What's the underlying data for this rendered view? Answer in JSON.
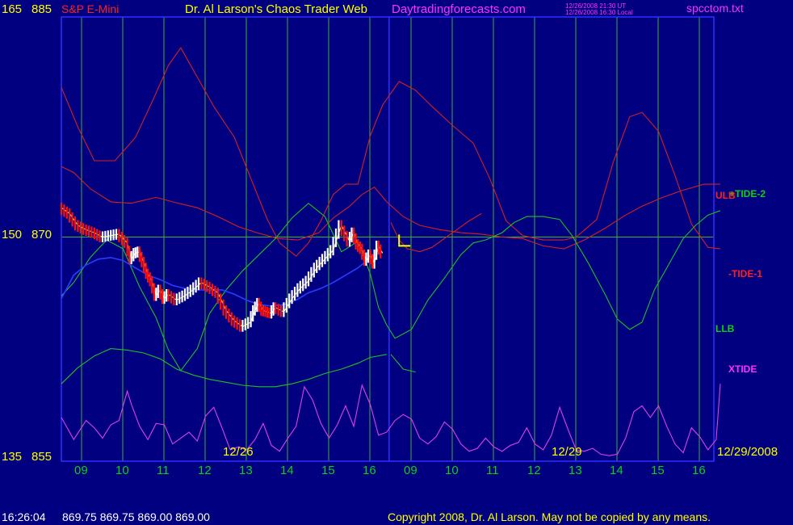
{
  "header": {
    "left_scale_top": "165",
    "left_price_top": "885",
    "instrument": "S&P E-Mini",
    "title": "Dr. Al Larson's Chaos Trader Web",
    "site": "Daytradingforecasts.com",
    "time_ut": "12/26/2008 21:30 UT",
    "time_local": "12/26/2008 16:30 Local",
    "file": "spcctom.txt"
  },
  "footer": {
    "quote_time": "16:26:04",
    "quote_values": "869.75 869.75 869.00 869.00",
    "copyright": "Copyright 2008, Dr. Al Larson. May not be copied by any means."
  },
  "colors": {
    "background": "#000080",
    "frame": "#3030ff",
    "grid": "#3cb03c",
    "ulb": "#d42020",
    "llb": "#20c020",
    "tide": "#e040e0",
    "price_up": "#ffffff",
    "price_down": "#ff1010",
    "avg_yellow": "#ffff40",
    "avg_blue": "#2a3cff",
    "label_yellow": "#ffff00",
    "label_green": "#10d010",
    "label_red": "#ff2020",
    "label_magenta": "#ff30ff"
  },
  "chart_data": {
    "type": "line",
    "y_axis_left": {
      "scale_labels": [
        "165",
        "150",
        "135"
      ],
      "price_labels": [
        "885",
        "870",
        "855"
      ],
      "ylim": [
        855,
        885
      ]
    },
    "hours": [
      "09",
      "10",
      "11",
      "12",
      "13",
      "14",
      "15",
      "16",
      "09",
      "10",
      "11",
      "12",
      "13",
      "14",
      "15",
      "16"
    ],
    "date_labels": [
      "12/26",
      "12/29",
      "12/29/2008"
    ],
    "right_labels": {
      "plus_tide_2": "+TIDE-2",
      "ulb": "ULB",
      "minus_tide_1": "-TIDE-1",
      "llb": "LLB",
      "xtide": "XTIDE"
    },
    "reference_price": 870,
    "marker": "L",
    "series": [
      {
        "name": "ULB",
        "x": [
          0,
          0.3,
          0.7,
          1.2,
          1.7,
          2.3,
          2.7,
          3.3,
          3.8,
          4.3,
          4.75,
          5.25,
          5.75,
          6.25,
          6.6,
          7.0,
          7.3,
          7.6,
          7.9,
          8.3,
          8.7,
          9.2,
          9.7,
          10.2,
          10.7,
          11.2,
          11.7,
          12.2,
          12.7,
          13.2,
          13.7,
          14.1,
          14.6,
          15.1,
          15.6,
          16.0
        ],
        "y": [
          874.8,
          874.4,
          873.3,
          872.4,
          872.3,
          872.7,
          872.4,
          872.0,
          871.4,
          870.7,
          870.3,
          869.9,
          869.8,
          870.3,
          871.3,
          872.1,
          872.9,
          873.4,
          872.4,
          871.4,
          870.8,
          870.5,
          870.3,
          870.2,
          870.0,
          869.9,
          869.4,
          869.2,
          869.8,
          870.6,
          871.5,
          872.1,
          872.7,
          873.2,
          873.6,
          873.6
        ]
      },
      {
        "name": "-TIDE-1",
        "x": [
          0,
          0.4,
          0.8,
          1.3,
          1.8,
          2.2,
          2.6,
          2.9,
          3.3,
          3.7,
          4.2,
          4.6,
          5.0,
          5.3,
          5.7,
          6.0,
          6.3,
          6.6,
          6.9,
          7.2,
          7.5,
          7.8,
          8.2,
          8.6,
          9.0,
          9.5,
          10.0,
          10.4,
          10.8,
          11.2,
          11.7,
          12.2,
          12.5,
          13.0,
          13.4,
          13.8,
          14.1,
          14.5,
          14.9,
          15.3,
          15.7,
          16.0
        ],
        "y": [
          880.2,
          877.5,
          875.2,
          875.2,
          876.8,
          879.2,
          881.7,
          882.9,
          880.9,
          878.9,
          876.8,
          874.0,
          871.2,
          869.6,
          868.7,
          869.6,
          871.1,
          872.9,
          873.6,
          873.6,
          876.9,
          879.0,
          880.6,
          880.0,
          878.9,
          877.6,
          876.4,
          874.0,
          871.1,
          870.1,
          869.8,
          869.8,
          870.0,
          871.2,
          875.1,
          878.2,
          878.5,
          877.2,
          874.2,
          870.9,
          869.3,
          869.2
        ]
      },
      {
        "name": "+TIDE-2",
        "x": [
          0,
          0.3,
          0.7,
          1.1,
          1.5,
          1.9,
          2.3,
          2.6,
          2.9,
          3.3,
          3.6,
          4.0,
          4.4,
          4.8,
          5.2,
          5.6,
          6.0,
          6.4,
          6.8,
          7.2,
          7.5,
          7.7,
          7.9,
          8.1,
          8.5,
          8.9,
          9.3,
          9.7,
          10.0,
          10.3,
          10.7,
          11.0,
          11.3,
          11.7,
          12.1,
          12.4,
          12.8,
          13.2,
          13.5,
          13.8,
          14.1,
          14.4,
          14.8,
          15.1,
          15.4,
          15.7,
          16.0
        ],
        "y": [
          866.0,
          866.9,
          868.6,
          869.8,
          869.2,
          866.6,
          864.5,
          862.3,
          860.9,
          862.4,
          864.8,
          866.4,
          867.7,
          868.8,
          869.9,
          871.3,
          872.3,
          871.4,
          869.0,
          869.7,
          867.5,
          865.2,
          864.0,
          863.1,
          863.7,
          865.7,
          867.2,
          868.8,
          869.6,
          869.8,
          870.3,
          871.0,
          871.4,
          871.4,
          871.2,
          870.1,
          868.2,
          866.1,
          864.4,
          863.7,
          864.2,
          866.4,
          868.4,
          869.9,
          870.8,
          871.5,
          871.8
        ]
      },
      {
        "name": "LLB",
        "x": [
          0,
          0.4,
          0.8,
          1.2,
          1.6,
          2.0,
          2.4,
          2.8,
          3.2,
          3.6,
          4.0,
          4.4,
          4.8,
          5.2,
          5.6,
          6.0,
          6.4,
          6.8,
          7.2,
          7.5,
          7.9
        ],
        "y": [
          860.0,
          861.1,
          861.9,
          862.4,
          862.3,
          862.1,
          861.7,
          861.0,
          860.6,
          860.3,
          860.1,
          859.9,
          859.8,
          859.8,
          860.0,
          860.3,
          860.7,
          861.0,
          861.4,
          861.8,
          862.0
        ]
      },
      {
        "name": "XTIDE",
        "x": [
          0,
          0.3,
          0.6,
          0.8,
          1.0,
          1.2,
          1.4,
          1.6,
          1.7,
          1.9,
          2.1,
          2.3,
          2.5,
          2.7,
          2.9,
          3.1,
          3.3,
          3.5,
          3.7,
          3.9,
          4.1,
          4.3,
          4.5,
          4.7,
          4.9,
          5.1,
          5.3,
          5.5,
          5.7,
          5.9,
          6.1,
          6.3,
          6.5,
          6.7,
          6.9,
          7.1,
          7.3,
          7.5,
          7.7,
          7.9,
          8.1,
          8.3,
          8.5,
          8.7,
          8.9,
          9.1,
          9.3,
          9.5,
          9.7,
          9.9,
          10.1,
          10.3,
          10.5,
          10.7,
          10.9,
          11.1,
          11.3,
          11.5,
          11.7,
          11.9,
          12.1,
          12.3,
          12.5,
          12.7,
          12.9,
          13.1,
          13.3,
          13.5,
          13.7,
          13.9,
          14.1,
          14.3,
          14.5,
          14.7,
          14.9,
          15.1,
          15.3,
          15.5,
          15.7,
          15.9,
          16.0
        ],
        "y": [
          857.7,
          856.2,
          857.5,
          857.0,
          856.3,
          857.2,
          857.5,
          859.5,
          858.6,
          857.1,
          856.2,
          857.3,
          857.2,
          855.9,
          856.3,
          856.7,
          856.1,
          857.8,
          858.4,
          857.0,
          855.5,
          855.7,
          855.5,
          856.2,
          857.3,
          855.8,
          855.4,
          856.3,
          857.1,
          859.8,
          858.9,
          857.3,
          856.3,
          857.2,
          858.5,
          857.1,
          859.9,
          858.6,
          856.5,
          856.7,
          857.5,
          857.9,
          857.6,
          856.3,
          855.9,
          856.4,
          857.4,
          856.9,
          855.9,
          855.4,
          855.6,
          856.3,
          855.7,
          855.4,
          855.8,
          856.0,
          857.0,
          855.9,
          855.5,
          856.5,
          858.4,
          856.9,
          855.5,
          855.4,
          855.6,
          855.2,
          855.1,
          855.2,
          856.3,
          858.1,
          858.5,
          857.7,
          858.5,
          857.1,
          855.9,
          855.3,
          857.0,
          856.4,
          855.5,
          856.2,
          860.0
        ]
      },
      {
        "name": "ULB-2",
        "x": [
          8.0,
          8.2,
          8.4,
          8.7,
          9.0,
          9.3,
          9.6,
          9.9,
          10.2
        ],
        "y": [
          871.0,
          869.8,
          869.2,
          869.0,
          869.3,
          869.9,
          870.5,
          871.1,
          871.6
        ]
      },
      {
        "name": "LLB-2",
        "x": [
          8.0,
          8.3,
          8.6
        ],
        "y": [
          862.0,
          861.0,
          860.8
        ]
      },
      {
        "name": "Avg-Blue",
        "x": [
          0,
          0.3,
          0.6,
          0.9,
          1.2,
          1.5,
          1.8,
          2.1,
          2.4,
          2.7,
          3.0,
          3.3,
          3.6,
          3.9,
          4.2,
          4.5,
          4.8,
          5.1,
          5.4,
          5.7,
          6.0,
          6.3,
          6.6,
          6.9,
          7.2,
          7.5,
          7.8
        ],
        "y": [
          865.8,
          867.4,
          868.1,
          868.5,
          868.6,
          868.4,
          867.9,
          867.4,
          867.1,
          866.7,
          866.5,
          866.4,
          866.4,
          866.4,
          866.1,
          865.7,
          865.4,
          865.3,
          865.4,
          865.7,
          866.2,
          866.5,
          866.9,
          867.4,
          867.9,
          868.6,
          869.0
        ]
      },
      {
        "name": "Price",
        "x": [
          0,
          0.2,
          0.4,
          0.6,
          0.8,
          1.0,
          1.2,
          1.4,
          1.6,
          1.7,
          1.8,
          1.9,
          2.0,
          2.1,
          2.2,
          2.3,
          2.4,
          2.5,
          2.6,
          2.8,
          3.0,
          3.2,
          3.4,
          3.6,
          3.8,
          4.0,
          4.2,
          4.4,
          4.6,
          4.7,
          4.8,
          4.9,
          5.0,
          5.1,
          5.2,
          5.4,
          5.6,
          5.8,
          6.0,
          6.2,
          6.4,
          6.6,
          6.8,
          7.0,
          7.1,
          7.2,
          7.3,
          7.4,
          7.5,
          7.6,
          7.7,
          7.8
        ],
        "y": [
          872.0,
          871.6,
          870.8,
          870.5,
          870.3,
          870.0,
          870.1,
          870.2,
          869.6,
          868.5,
          868.9,
          869.0,
          868.3,
          867.5,
          867.0,
          866.0,
          866.4,
          865.8,
          866.1,
          865.7,
          866.0,
          866.4,
          866.9,
          866.6,
          866.2,
          865.0,
          864.3,
          863.9,
          864.2,
          865.0,
          865.5,
          865.0,
          864.9,
          864.8,
          865.2,
          864.9,
          865.8,
          866.5,
          867.0,
          867.9,
          868.5,
          869.1,
          870.8,
          869.7,
          870.3,
          869.5,
          869.2,
          868.4,
          868.8,
          868.2,
          869.4,
          868.9
        ]
      }
    ]
  }
}
